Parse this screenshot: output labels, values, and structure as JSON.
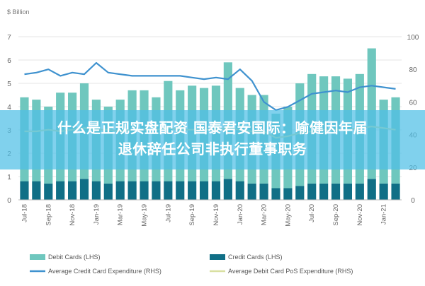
{
  "chart_data": {
    "type": "bar",
    "units_label": "$ Billion",
    "categories": [
      "Jul-18",
      "Aug-18",
      "Sep-18",
      "Oct-18",
      "Nov-18",
      "Dec-18",
      "Jan-19",
      "Feb-19",
      "Mar-19",
      "Apr-19",
      "May-19",
      "Jun-19",
      "Jul-19",
      "Aug-19",
      "Sep-19",
      "Oct-19",
      "Nov-19",
      "Dec-19",
      "Jan-20",
      "Feb-20",
      "Mar-20",
      "Apr-20",
      "May-20",
      "Jun-20",
      "Jul-20",
      "Aug-20",
      "Sep-20",
      "Oct-20",
      "Nov-20",
      "Dec-20",
      "Jan-21",
      "Feb-21"
    ],
    "x_tick_labels": [
      "Jul-18",
      "Sep-18",
      "Nov-18",
      "Jan-19",
      "Mar-19",
      "May-19",
      "Jul-19",
      "Sep-19",
      "Nov-19",
      "Jan-20",
      "Mar-20",
      "May-20",
      "Jul-20",
      "Sep-20",
      "Nov-20",
      "Jan-21"
    ],
    "left_ticks": [
      0,
      1,
      2,
      3,
      4,
      5,
      6,
      7
    ],
    "right_ticks": [
      0,
      20,
      40,
      60,
      80,
      100
    ],
    "ylim_left": [
      0,
      7
    ],
    "ylim_right": [
      0,
      100
    ],
    "series": [
      {
        "name": "Debit Cards (LHS)",
        "kind": "bar",
        "axis": "left",
        "color": "#6fc7be",
        "values": [
          4.4,
          4.3,
          4.0,
          4.6,
          4.6,
          5.0,
          4.3,
          4.0,
          4.3,
          4.7,
          4.7,
          4.4,
          5.1,
          4.7,
          4.9,
          4.8,
          4.9,
          5.9,
          4.8,
          4.5,
          4.5,
          3.7,
          4.0,
          5.0,
          5.4,
          5.3,
          5.3,
          5.2,
          5.4,
          6.5,
          4.3,
          4.4
        ]
      },
      {
        "name": "Credit Cards (LHS)",
        "kind": "bar",
        "axis": "left",
        "color": "#106f86",
        "values": [
          0.8,
          0.8,
          0.7,
          0.8,
          0.8,
          0.9,
          0.8,
          0.7,
          0.8,
          0.8,
          0.8,
          0.8,
          0.8,
          0.8,
          0.8,
          0.8,
          0.8,
          0.9,
          0.8,
          0.7,
          0.7,
          0.5,
          0.5,
          0.6,
          0.7,
          0.7,
          0.7,
          0.7,
          0.7,
          0.9,
          0.7,
          0.7
        ]
      },
      {
        "name": "Average Credit Card Expenditure (RHS)",
        "kind": "line",
        "axis": "right",
        "color": "#3f92cf",
        "values": [
          77,
          78,
          80,
          76,
          78,
          77,
          84,
          78,
          77,
          76,
          76,
          76,
          76,
          76,
          75,
          74,
          75,
          74,
          80,
          73,
          60,
          55,
          57,
          61,
          65,
          66,
          67,
          66,
          69,
          70,
          69,
          68
        ]
      },
      {
        "name": "Average Debit Card PoS Expenditure (RHS)",
        "kind": "line",
        "axis": "right",
        "color": "#d9e0a1",
        "values": [
          42,
          42,
          43,
          42,
          43,
          44,
          43,
          43,
          42,
          43,
          43,
          43,
          44,
          43,
          43,
          43,
          43,
          44,
          43,
          42,
          42,
          38,
          39,
          41,
          42,
          43,
          43,
          43,
          44,
          45,
          44,
          43
        ]
      }
    ]
  },
  "overlay": {
    "line1": "什么是正规实盘配资 国泰君安国际：喻健因年届",
    "line2": "退休辞任公司非执行董事职务"
  }
}
